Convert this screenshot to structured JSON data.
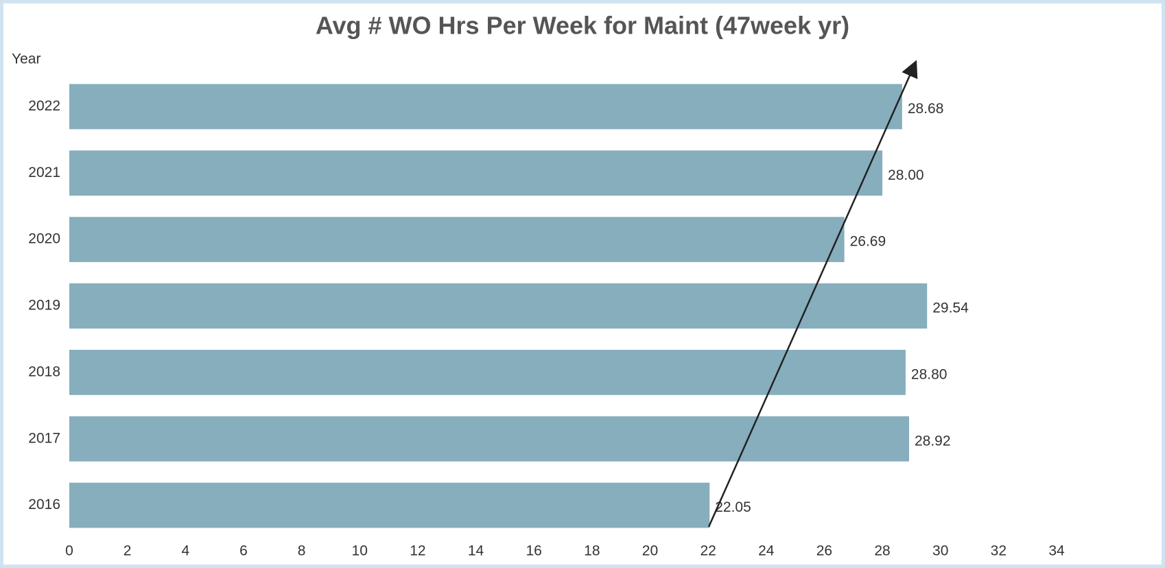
{
  "chart_data": {
    "type": "bar",
    "orientation": "horizontal",
    "title": "Avg # WO Hrs Per Week for Maint (47week yr)",
    "y_label": "Year",
    "categories": [
      "2022",
      "2021",
      "2020",
      "2019",
      "2018",
      "2017",
      "2016"
    ],
    "values": [
      28.68,
      28.0,
      26.69,
      29.54,
      28.8,
      28.92,
      22.05
    ],
    "value_labels": [
      "28.68",
      "28.00",
      "26.69",
      "29.54",
      "28.80",
      "28.92",
      "22.05"
    ],
    "color": "#86aebd",
    "xlim": [
      0,
      34
    ],
    "xticks": [
      0,
      2,
      4,
      6,
      8,
      10,
      12,
      14,
      16,
      18,
      20,
      22,
      24,
      26,
      28,
      30,
      32,
      34
    ]
  }
}
